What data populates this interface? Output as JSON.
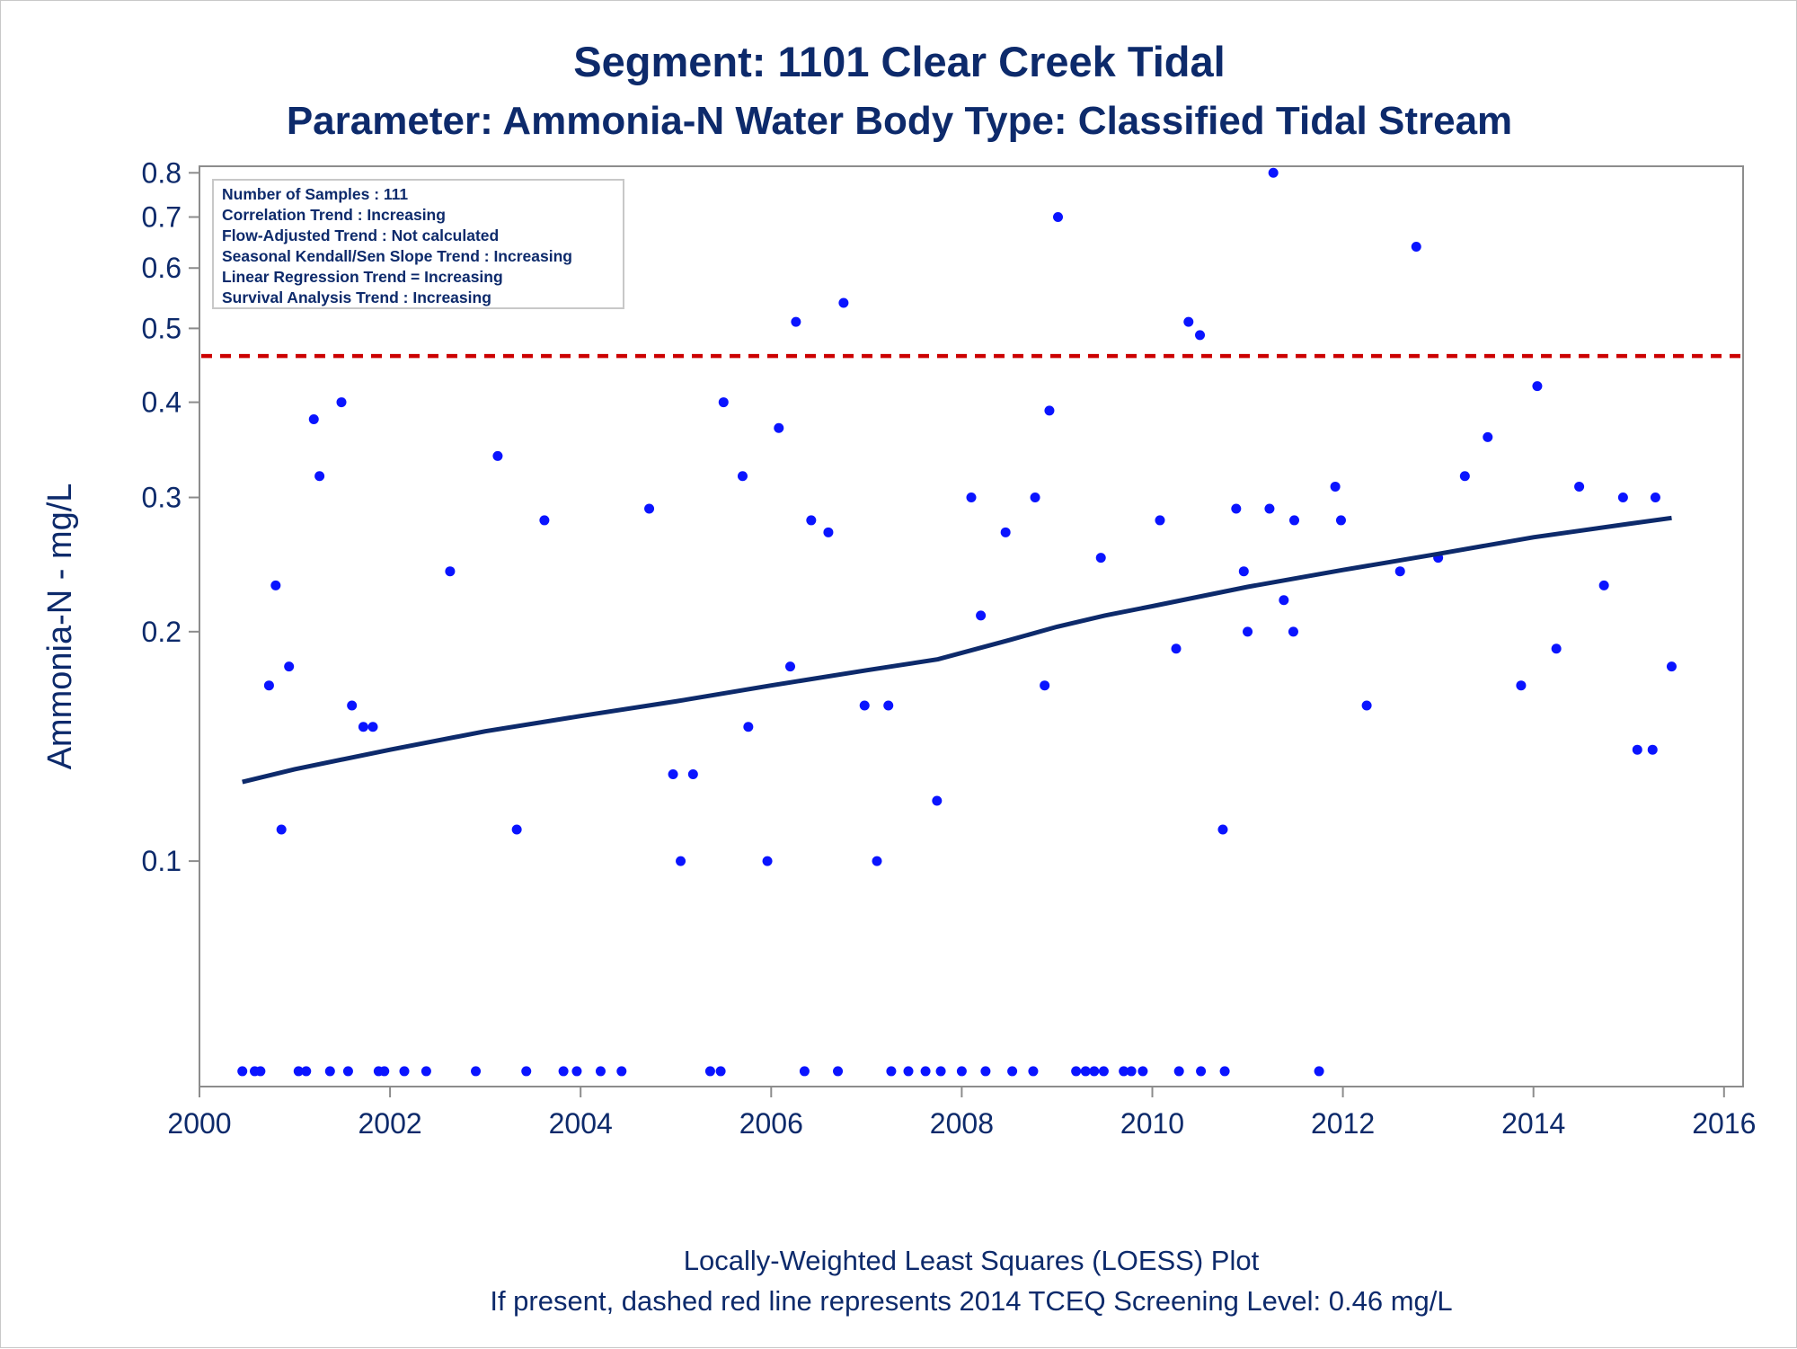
{
  "colors": {
    "text": "#0d2a6b",
    "point": "#0a14ff",
    "trend_line": "#0d2a6b",
    "screening_line": "#cc0000",
    "frame": "#8c8c8c"
  },
  "chart_data": {
    "type": "scatter",
    "title": "Segment: 1101  Clear Creek Tidal",
    "subtitle": "Parameter: Ammonia-N   Water Body Type: Classified Tidal Stream",
    "xlabel": "",
    "ylabel": "Ammonia-N - mg/L",
    "footnotes": [
      "Locally-Weighted Least Squares (LOESS) Plot",
      "If present, dashed red line represents 2014 TCEQ Screening Level: 0.46 mg/L"
    ],
    "legend_placement": "top-left",
    "legend_entries": [
      "Number of Samples : 111",
      "Correlation Trend : Increasing",
      "Flow-Adjusted Trend : Not calculated",
      "Seasonal Kendall/Sen Slope Trend : Increasing",
      "Linear Regression Trend = Increasing",
      "Survival Analysis Trend : Increasing"
    ],
    "x_scale": "linear",
    "y_scale": "log",
    "xlim": [
      2000,
      2016.2
    ],
    "ylim": [
      0.0506,
      0.816
    ],
    "grid": false,
    "x_ticks": [
      2000,
      2002,
      2004,
      2006,
      2008,
      2010,
      2012,
      2014,
      2016
    ],
    "y_ticks": [
      0.1,
      0.2,
      0.3,
      0.4,
      0.5,
      0.6,
      0.7,
      0.8
    ],
    "y_tick_labels": [
      "0.1",
      "0.2",
      "0.3",
      "0.4",
      "0.5",
      "0.6",
      "0.7",
      "0.8"
    ],
    "screening_level": 0.46,
    "points": [
      [
        2000.45,
        0.053
      ],
      [
        2000.58,
        0.053
      ],
      [
        2000.64,
        0.053
      ],
      [
        2000.73,
        0.17
      ],
      [
        2000.8,
        0.23
      ],
      [
        2000.86,
        0.11
      ],
      [
        2000.94,
        0.18
      ],
      [
        2001.04,
        0.053
      ],
      [
        2001.12,
        0.053
      ],
      [
        2001.2,
        0.38
      ],
      [
        2001.26,
        0.32
      ],
      [
        2001.37,
        0.053
      ],
      [
        2001.49,
        0.4
      ],
      [
        2001.56,
        0.053
      ],
      [
        2001.6,
        0.16
      ],
      [
        2001.72,
        0.15
      ],
      [
        2001.82,
        0.15
      ],
      [
        2001.88,
        0.053
      ],
      [
        2001.94,
        0.053
      ],
      [
        2002.15,
        0.053
      ],
      [
        2002.38,
        0.053
      ],
      [
        2002.63,
        0.24
      ],
      [
        2002.9,
        0.053
      ],
      [
        2003.13,
        0.34
      ],
      [
        2003.33,
        0.11
      ],
      [
        2003.43,
        0.053
      ],
      [
        2003.62,
        0.28
      ],
      [
        2003.82,
        0.053
      ],
      [
        2003.96,
        0.053
      ],
      [
        2004.21,
        0.053
      ],
      [
        2004.43,
        0.053
      ],
      [
        2004.72,
        0.29
      ],
      [
        2004.97,
        0.13
      ],
      [
        2005.05,
        0.1
      ],
      [
        2005.18,
        0.13
      ],
      [
        2005.36,
        0.053
      ],
      [
        2005.47,
        0.053
      ],
      [
        2005.5,
        0.4
      ],
      [
        2005.7,
        0.32
      ],
      [
        2005.76,
        0.15
      ],
      [
        2005.96,
        0.1
      ],
      [
        2006.08,
        0.37
      ],
      [
        2006.2,
        0.18
      ],
      [
        2006.26,
        0.51
      ],
      [
        2006.35,
        0.053
      ],
      [
        2006.42,
        0.28
      ],
      [
        2006.6,
        0.27
      ],
      [
        2006.7,
        0.053
      ],
      [
        2006.76,
        0.54
      ],
      [
        2006.98,
        0.16
      ],
      [
        2007.11,
        0.1
      ],
      [
        2007.23,
        0.16
      ],
      [
        2007.26,
        0.053
      ],
      [
        2007.44,
        0.053
      ],
      [
        2007.62,
        0.053
      ],
      [
        2007.74,
        0.12
      ],
      [
        2007.78,
        0.053
      ],
      [
        2008.0,
        0.053
      ],
      [
        2008.1,
        0.3
      ],
      [
        2008.2,
        0.21
      ],
      [
        2008.25,
        0.053
      ],
      [
        2008.46,
        0.27
      ],
      [
        2008.53,
        0.053
      ],
      [
        2008.75,
        0.053
      ],
      [
        2008.77,
        0.3
      ],
      [
        2008.87,
        0.17
      ],
      [
        2008.92,
        0.39
      ],
      [
        2009.01,
        0.7
      ],
      [
        2009.2,
        0.053
      ],
      [
        2009.3,
        0.053
      ],
      [
        2009.39,
        0.053
      ],
      [
        2009.46,
        0.25
      ],
      [
        2009.49,
        0.053
      ],
      [
        2009.7,
        0.053
      ],
      [
        2009.78,
        0.053
      ],
      [
        2009.9,
        0.053
      ],
      [
        2010.08,
        0.28
      ],
      [
        2010.25,
        0.19
      ],
      [
        2010.28,
        0.053
      ],
      [
        2010.38,
        0.51
      ],
      [
        2010.5,
        0.49
      ],
      [
        2010.51,
        0.053
      ],
      [
        2010.74,
        0.11
      ],
      [
        2010.76,
        0.053
      ],
      [
        2010.88,
        0.29
      ],
      [
        2010.96,
        0.24
      ],
      [
        2011.0,
        0.2
      ],
      [
        2011.23,
        0.29
      ],
      [
        2011.27,
        0.8
      ],
      [
        2011.38,
        0.22
      ],
      [
        2011.48,
        0.2
      ],
      [
        2011.49,
        0.28
      ],
      [
        2011.75,
        0.053
      ],
      [
        2011.92,
        0.31
      ],
      [
        2011.98,
        0.28
      ],
      [
        2012.25,
        0.16
      ],
      [
        2012.6,
        0.24
      ],
      [
        2012.77,
        0.64
      ],
      [
        2013.0,
        0.25
      ],
      [
        2013.28,
        0.32
      ],
      [
        2013.52,
        0.36
      ],
      [
        2013.87,
        0.17
      ],
      [
        2014.04,
        0.42
      ],
      [
        2014.24,
        0.19
      ],
      [
        2014.48,
        0.31
      ],
      [
        2014.74,
        0.23
      ],
      [
        2014.94,
        0.3
      ],
      [
        2015.09,
        0.14
      ],
      [
        2015.25,
        0.14
      ],
      [
        2015.28,
        0.3
      ],
      [
        2015.45,
        0.18
      ]
    ],
    "trend_line": [
      [
        2000.45,
        0.127
      ],
      [
        2001.0,
        0.132
      ],
      [
        2002.0,
        0.14
      ],
      [
        2003.0,
        0.148
      ],
      [
        2004.0,
        0.155
      ],
      [
        2005.0,
        0.162
      ],
      [
        2006.0,
        0.17
      ],
      [
        2007.0,
        0.178
      ],
      [
        2007.75,
        0.184
      ],
      [
        2008.5,
        0.195
      ],
      [
        2009.0,
        0.203
      ],
      [
        2009.5,
        0.21
      ],
      [
        2010.0,
        0.216
      ],
      [
        2011.0,
        0.229
      ],
      [
        2012.0,
        0.241
      ],
      [
        2013.0,
        0.253
      ],
      [
        2014.0,
        0.266
      ],
      [
        2015.0,
        0.277
      ],
      [
        2015.45,
        0.282
      ]
    ]
  }
}
